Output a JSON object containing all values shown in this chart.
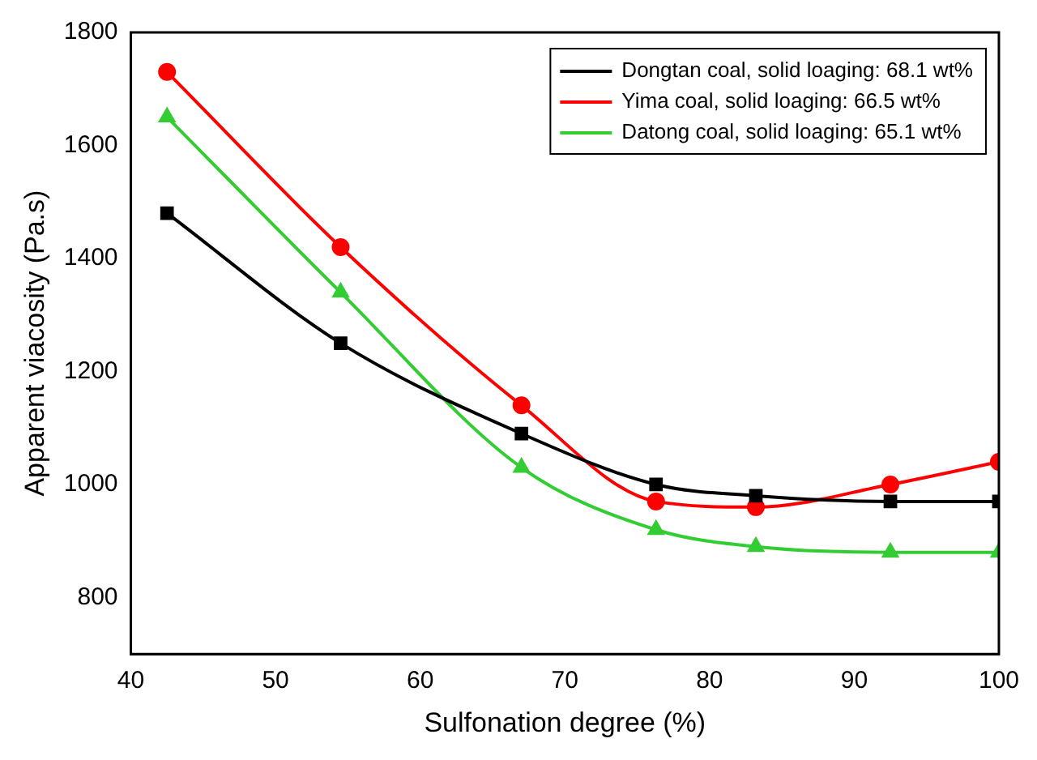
{
  "chart_data": {
    "type": "line",
    "xlabel": "Sulfonation degree (%)",
    "ylabel": "Apparent viacosity (Pa.s)",
    "x": [
      42.5,
      54.5,
      67,
      76.3,
      83.2,
      92.5,
      100
    ],
    "series": [
      {
        "name": "Dongtan coal, solid loaging: 68.1 wt%",
        "color": "#000000",
        "marker": "square",
        "values": [
          1480,
          1250,
          1090,
          1000,
          980,
          970,
          970
        ]
      },
      {
        "name": "Yima coal, solid loaging: 66.5 wt%",
        "color": "#ff0000",
        "marker": "circle",
        "values": [
          1730,
          1420,
          1140,
          970,
          960,
          1000,
          1040
        ]
      },
      {
        "name": "Datong coal, solid loaging: 65.1 wt%",
        "color": "#33cc33",
        "marker": "triangle",
        "values": [
          1650,
          1340,
          1030,
          920,
          890,
          880,
          880
        ]
      }
    ],
    "xlim": [
      40,
      100
    ],
    "xticks": [
      40,
      50,
      60,
      70,
      80,
      90,
      100
    ],
    "ylim": [
      700,
      1800
    ],
    "yticks": [
      800,
      1000,
      1200,
      1400,
      1600,
      1800
    ],
    "grid": false,
    "legend": "top right",
    "line_style": "solid"
  }
}
